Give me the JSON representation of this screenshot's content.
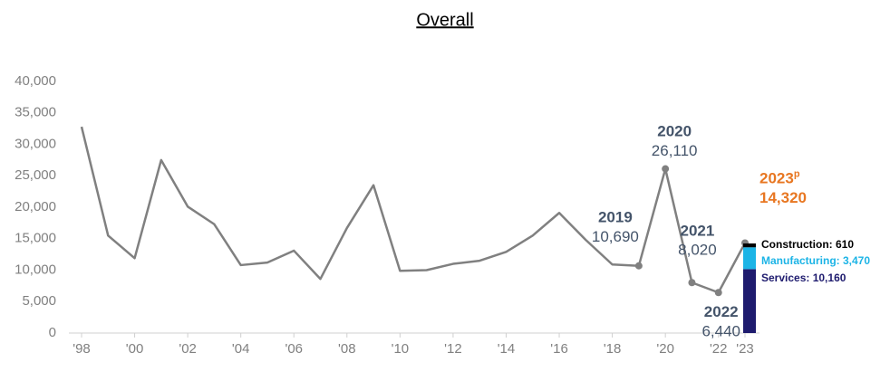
{
  "chart_data": {
    "type": "line",
    "title": "Overall",
    "x": [
      1998,
      1999,
      2000,
      2001,
      2002,
      2003,
      2004,
      2005,
      2006,
      2007,
      2008,
      2009,
      2010,
      2011,
      2012,
      2013,
      2014,
      2015,
      2016,
      2017,
      2018,
      2019,
      2020,
      2021,
      2022,
      2023
    ],
    "xlim": [
      1997.5,
      2024.5
    ],
    "xticks": [
      {
        "value": 1998,
        "label": "'98"
      },
      {
        "value": 2000,
        "label": "'00"
      },
      {
        "value": 2002,
        "label": "'02"
      },
      {
        "value": 2004,
        "label": "'04"
      },
      {
        "value": 2006,
        "label": "'06"
      },
      {
        "value": 2008,
        "label": "'08"
      },
      {
        "value": 2010,
        "label": "'10"
      },
      {
        "value": 2012,
        "label": "'12"
      },
      {
        "value": 2014,
        "label": "'14"
      },
      {
        "value": 2016,
        "label": "'16"
      },
      {
        "value": 2018,
        "label": "'18"
      },
      {
        "value": 2020,
        "label": "'20"
      },
      {
        "value": 2022,
        "label": "'22"
      },
      {
        "value": 2023,
        "label": "'23"
      }
    ],
    "ylim": [
      0,
      40000
    ],
    "yticks": [
      0,
      {
        "value": 5000,
        "label": "5,000"
      },
      {
        "value": 10000,
        "label": "10,000"
      },
      {
        "value": 15000,
        "label": "15,000"
      },
      {
        "value": 20000,
        "label": "20,000"
      },
      {
        "value": 25000,
        "label": "25,000"
      },
      {
        "value": 30000,
        "label": "30,000"
      },
      {
        "value": 35000,
        "label": "35,000"
      },
      {
        "value": 40000,
        "label": "40,000"
      }
    ],
    "series": [
      {
        "color": "#808080",
        "values": [
          32800,
          15500,
          11900,
          27500,
          20100,
          17300,
          10800,
          11200,
          13100,
          8600,
          16700,
          23500,
          9900,
          10000,
          11000,
          11500,
          12900,
          15500,
          19100,
          14800,
          10900,
          10690,
          26110,
          8020,
          6440,
          14320
        ],
        "value_labels": [
          null,
          null,
          null,
          null,
          null,
          null,
          null,
          null,
          null,
          null,
          null,
          null,
          null,
          null,
          null,
          null,
          null,
          null,
          null,
          null,
          null,
          "10,690",
          "26,110",
          "8,020",
          "6,440",
          "14,320"
        ]
      }
    ],
    "provisional_mark": "p",
    "stack": {
      "x": 2023,
      "segments": [
        {
          "color": "#1e1b6e",
          "values": [
            10160
          ],
          "value_labels": [
            "Services: 10,160"
          ]
        },
        {
          "color": "#1cb4e6",
          "values": [
            3470
          ],
          "value_labels": [
            "Manufacturing: 3,470"
          ]
        },
        {
          "color": "#000000",
          "values": [
            610
          ],
          "value_labels": [
            "Construction: 610"
          ]
        }
      ]
    }
  }
}
